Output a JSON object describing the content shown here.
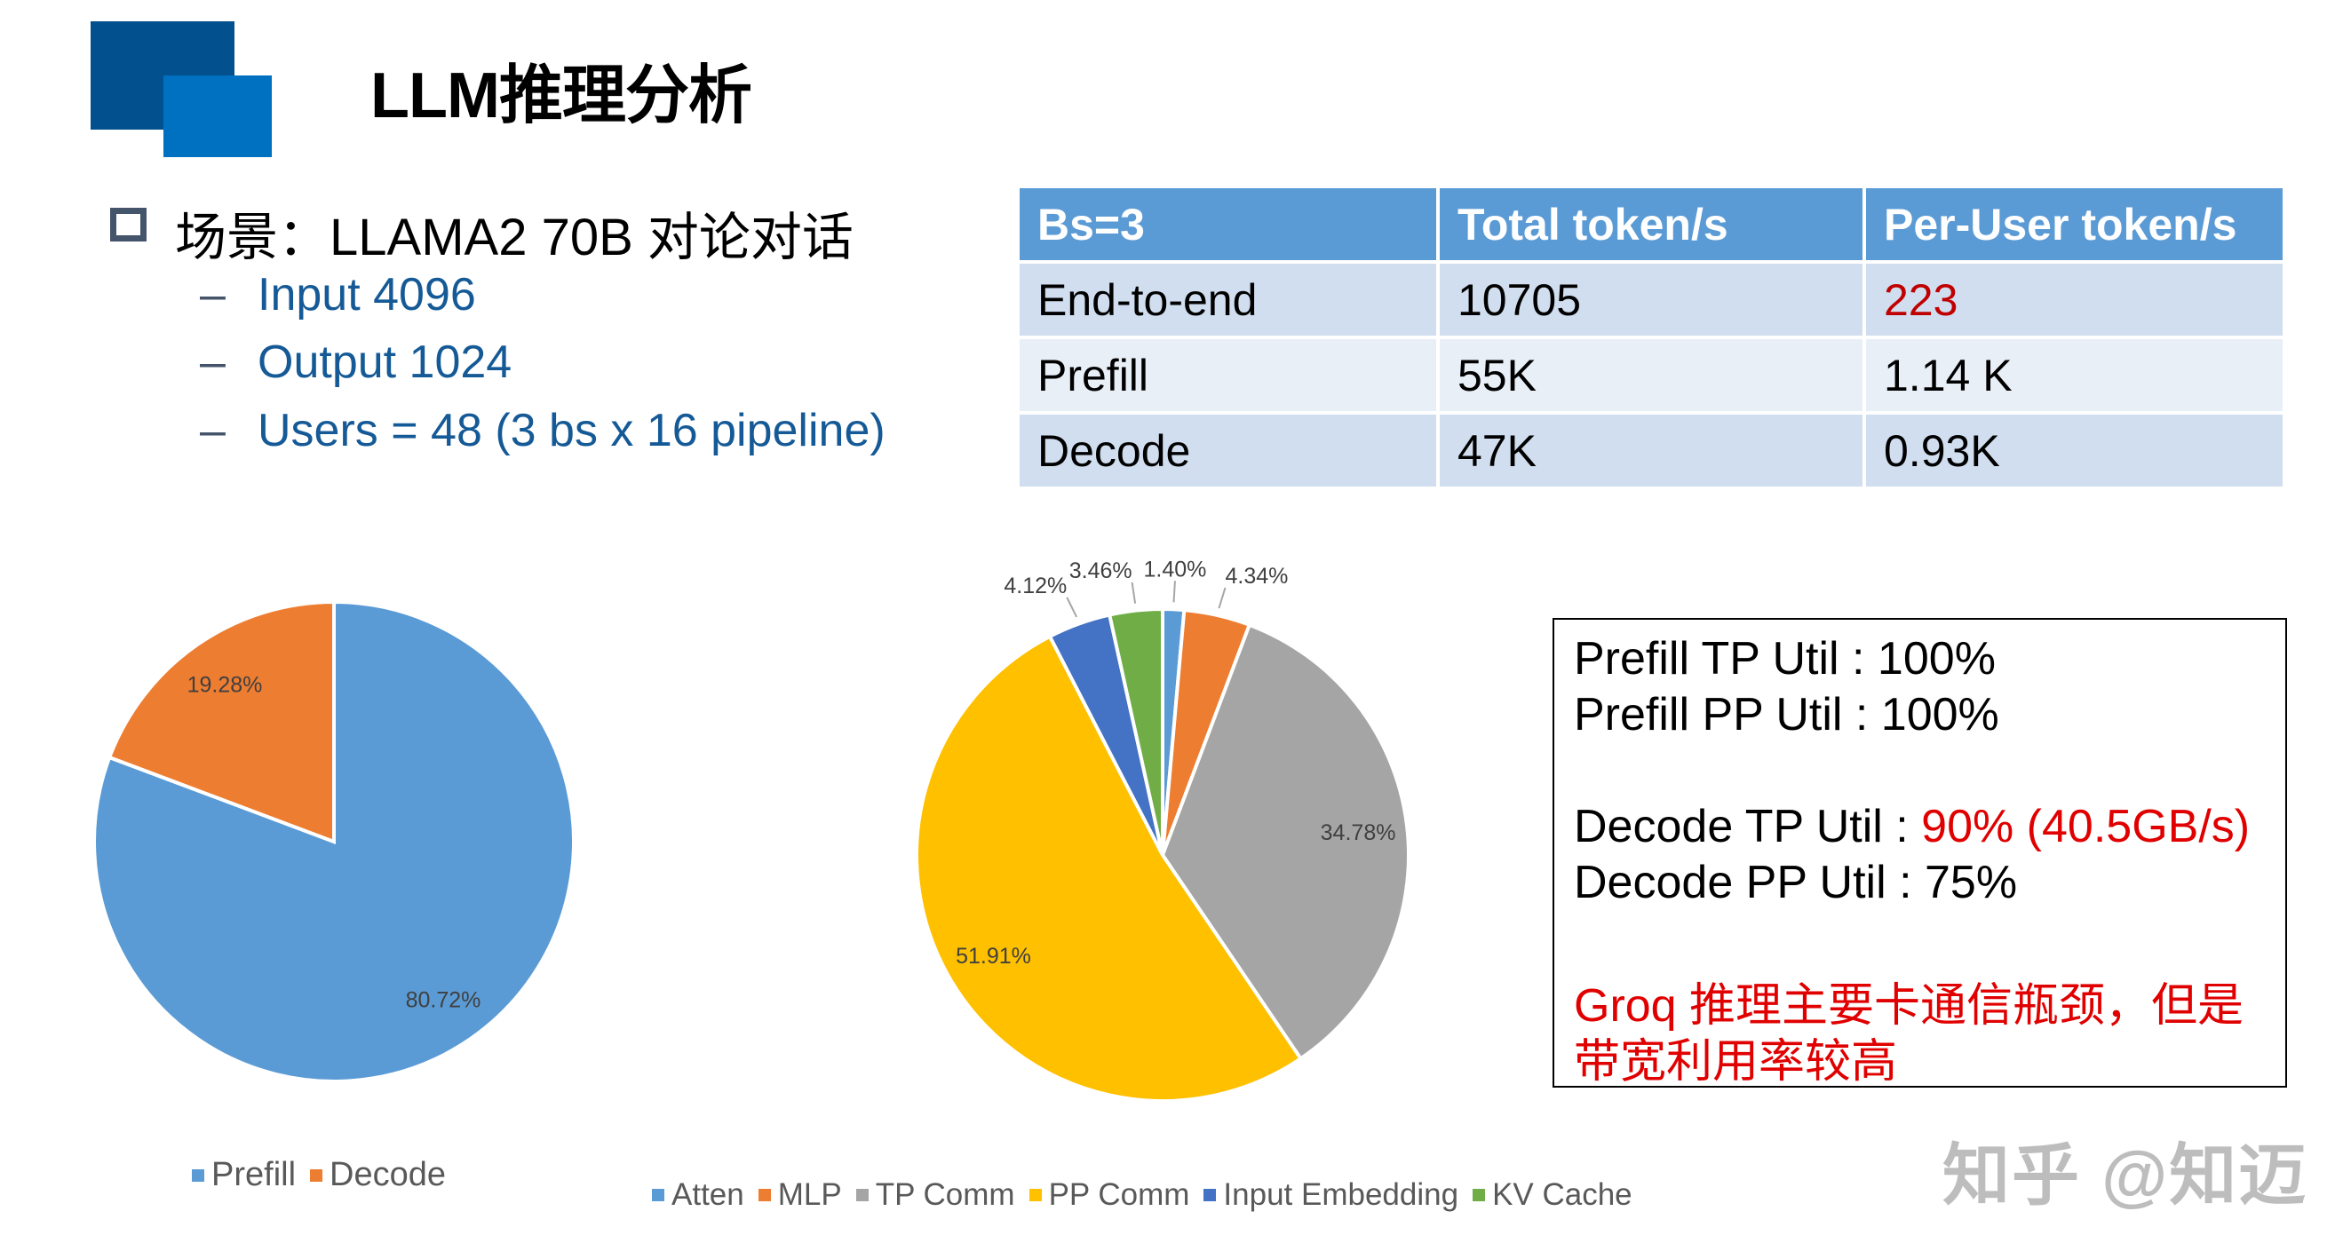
{
  "title": "LLM推理分析",
  "scenario": {
    "label": "场景：LLAMA2 70B 对论对话",
    "items": [
      "Input 4096",
      "Output 1024",
      "Users = 48 (3 bs x 16 pipeline)"
    ],
    "dash": "–"
  },
  "table": {
    "headers": [
      "Bs=3",
      "Total token/s",
      "Per-User token/s"
    ],
    "rows": [
      [
        "End-to-end",
        "10705",
        "223"
      ],
      [
        "Prefill",
        "55K",
        "1.14 K"
      ],
      [
        "Decode",
        "47K",
        "0.93K"
      ]
    ]
  },
  "infobox": {
    "prefill_tp": "Prefill TP Util : 100%",
    "prefill_pp": "Prefill PP Util : 100%",
    "decode_tp_label": "Decode TP Util : ",
    "decode_tp_value": "90% (40.5GB/s)",
    "decode_pp": "Decode PP Util : 75%",
    "conclusion_line1": "Groq 推理主要卡通信瓶颈，但是",
    "conclusion_line2": "带宽利用率较高"
  },
  "watermark": "知乎 @知迈",
  "colors": {
    "accent_dark": "#03508E",
    "accent": "#0070C0",
    "header_blue": "#5B9BD5",
    "highlight_red": "#E00000"
  },
  "chart_data": [
    {
      "type": "pie",
      "start": "top",
      "direction": "clockwise",
      "legend": "bottom",
      "labels": [
        "Prefill",
        "Decode"
      ],
      "values": [
        80.72,
        19.28
      ],
      "data_labels": [
        "80.72%",
        "19.28%"
      ],
      "colors": [
        "#5B9BD5",
        "#ED7D31"
      ]
    },
    {
      "type": "pie",
      "start": "top",
      "direction": "clockwise",
      "legend": "bottom",
      "labels": [
        "Atten",
        "MLP",
        "TP Comm",
        "PP Comm",
        "Input Embedding",
        "KV Cache"
      ],
      "values": [
        1.4,
        4.34,
        34.78,
        51.91,
        4.12,
        3.46
      ],
      "data_labels": [
        "1.40%",
        "4.34%",
        "34.78%",
        "51.91%",
        "4.12%",
        "3.46%"
      ],
      "colors": [
        "#5B9BD5",
        "#ED7D31",
        "#A5A5A5",
        "#FFC000",
        "#4472C4",
        "#70AD47"
      ]
    }
  ]
}
